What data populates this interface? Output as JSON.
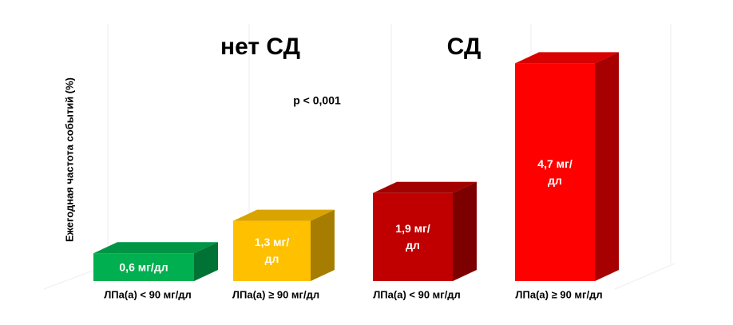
{
  "chart_data": {
    "type": "bar3d",
    "y_axis_label": "Ежегодная частота событий (%)",
    "group_labels": [
      "нет СД",
      "СД"
    ],
    "annotation": "p < 0,001",
    "categories": [
      "ЛПа(а) < 90 мг/дл",
      "ЛПа(а) ≥ 90 мг/дл",
      "ЛПа(а) < 90 мг/дл",
      "ЛПа(а) ≥ 90 мг/дл"
    ],
    "values": [
      0.6,
      1.3,
      1.9,
      4.7
    ],
    "value_labels": [
      "0,6 мг/дл",
      "1,3 мг/дл",
      "1,9 мг/дл",
      "4,7 мг/дл"
    ],
    "colors": [
      "#00b050",
      "#ffc000",
      "#c00000",
      "#ff0000"
    ],
    "ylim": [
      0,
      5
    ]
  }
}
